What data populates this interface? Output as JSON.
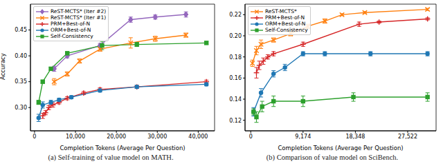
{
  "chart_data": [
    {
      "type": "line",
      "title": "(a) Self-training of value model on MATH.",
      "x_label": "Completion Tokens (Average Per Question)",
      "y_label": "Accuracy",
      "xlim": [
        -1000,
        44000
      ],
      "xticks": [
        0,
        {
          "value": 10000,
          "label": "10,000"
        },
        {
          "value": 20000,
          "label": "20,000"
        },
        {
          "value": 30000,
          "label": "30,000"
        },
        {
          "value": 40000,
          "label": "40,000"
        }
      ],
      "ylim": [
        0.255,
        0.5
      ],
      "yticks": [
        {
          "value": 0.3,
          "label": "0.30"
        },
        0.35,
        {
          "value": 0.4,
          "label": "0.40"
        },
        0.45
      ],
      "legend": "upper left",
      "grid": false,
      "series": [
        {
          "name": "ReST-MCTS* (Iter #2)",
          "color": "#9467bd",
          "marker": "diamond",
          "x": [
            4800,
            8000,
            16000,
            23500,
            29500,
            37000
          ],
          "values": [
            0.375,
            0.4,
            0.42,
            0.47,
            0.475,
            0.48
          ],
          "errors": [
            0.005,
            0.004,
            0.004,
            0.005,
            0.004,
            0.005
          ]
        },
        {
          "name": "ReST-MCTS* (Iter #1)",
          "color": "#ff7f0e",
          "marker": "x",
          "x": [
            4800,
            8000,
            11000,
            16000,
            23500,
            29500,
            37000
          ],
          "values": [
            0.35,
            0.365,
            0.39,
            0.413,
            0.425,
            0.433,
            0.44
          ],
          "errors": [
            0.006,
            0.004,
            0.004,
            0.004,
            0.01,
            0.005,
            0.004
          ]
        },
        {
          "name": "PRM+Best-of-N",
          "color": "#d62728",
          "marker": "plus",
          "x": [
            2000,
            2700,
            3500,
            4500,
            6000,
            8000,
            12000,
            16000,
            25000,
            42000
          ],
          "values": [
            0.284,
            0.29,
            0.3,
            0.305,
            0.31,
            0.318,
            0.328,
            0.335,
            0.34,
            0.35
          ],
          "errors": [
            0.005,
            0.004,
            0.004,
            0.004,
            0.003,
            0.003,
            0.003,
            0.003,
            0.003,
            0.003
          ]
        },
        {
          "name": "ORM+Best-of-N",
          "color": "#1f77b4",
          "marker": "circle",
          "x": [
            1000,
            2000,
            4000,
            6000,
            9000,
            16000,
            25000,
            42000
          ],
          "values": [
            0.28,
            0.305,
            0.31,
            0.315,
            0.32,
            0.333,
            0.34,
            0.345
          ],
          "errors": [
            0.007,
            0.006,
            0.004,
            0.003,
            0.003,
            0.003,
            0.003,
            0.003
          ]
        },
        {
          "name": "Self-Consistency",
          "color": "#2ca02c",
          "marker": "square",
          "x": [
            1000,
            2000,
            4000,
            8000,
            16500,
            25000,
            42000
          ],
          "values": [
            0.31,
            0.35,
            0.375,
            0.405,
            0.42,
            0.422,
            0.425
          ],
          "errors": [
            0.004,
            0.003,
            0.003,
            0.003,
            0.008,
            0.004,
            0.003
          ]
        }
      ]
    },
    {
      "type": "line",
      "title": "(b) Comparison of value model on SciBench.",
      "x_label": "Completion Tokens (Average Per Question)",
      "xlim": [
        -1000,
        32500
      ],
      "xticks": [
        0,
        {
          "value": 9174,
          "label": "9,174"
        },
        {
          "value": 18348,
          "label": "18,348"
        },
        {
          "value": 27522,
          "label": "27,522"
        }
      ],
      "ylim": [
        0.11,
        0.23
      ],
      "yticks": [
        0.12,
        0.14,
        0.16,
        0.18,
        {
          "value": 0.2,
          "label": "0.20"
        },
        0.22
      ],
      "legend": "upper left",
      "grid": false,
      "series": [
        {
          "name": "ReST-MCTS*",
          "color": "#ff7f0e",
          "marker": "x",
          "x": [
            300,
            1000,
            1800,
            4000,
            7000,
            10000,
            13000,
            16000,
            20000,
            31000
          ],
          "values": [
            0.174,
            0.186,
            0.192,
            0.196,
            0.202,
            0.209,
            0.214,
            0.22,
            0.222,
            0.225
          ],
          "errors": [
            0.003,
            0.004,
            0.004,
            0.002,
            0.002,
            0.002,
            0.002,
            0.001,
            0.001,
            0.001
          ]
        },
        {
          "name": "PRM+Best-of-N",
          "color": "#d62728",
          "marker": "plus",
          "x": [
            1000,
            1500,
            2200,
            3000,
            4000,
            9174,
            19000,
            22500,
            31000
          ],
          "values": [
            0.165,
            0.172,
            0.176,
            0.18,
            0.183,
            0.192,
            0.211,
            0.213,
            0.216
          ],
          "errors": [
            0.005,
            0.004,
            0.003,
            0.002,
            0.002,
            0.002,
            0.002,
            0.001,
            0.001
          ]
        },
        {
          "name": "ORM+Best-of-N",
          "color": "#1f77b4",
          "marker": "circle",
          "x": [
            500,
            1800,
            4000,
            6000,
            9174,
            13000,
            21000,
            31000
          ],
          "values": [
            0.128,
            0.146,
            0.164,
            0.17,
            0.183,
            0.183,
            0.183,
            0.183
          ],
          "errors": [
            0.004,
            0.004,
            0.003,
            0.003,
            0.002,
            0.002,
            0.002,
            0.002
          ]
        },
        {
          "name": "Self-Consistency",
          "color": "#2ca02c",
          "marker": "square",
          "x": [
            500,
            1000,
            2000,
            4000,
            9174,
            18000,
            31000
          ],
          "values": [
            0.128,
            0.123,
            0.133,
            0.138,
            0.138,
            0.142,
            0.142
          ],
          "errors": [
            0.003,
            0.005,
            0.005,
            0.005,
            0.005,
            0.004,
            0.004
          ]
        }
      ]
    }
  ]
}
